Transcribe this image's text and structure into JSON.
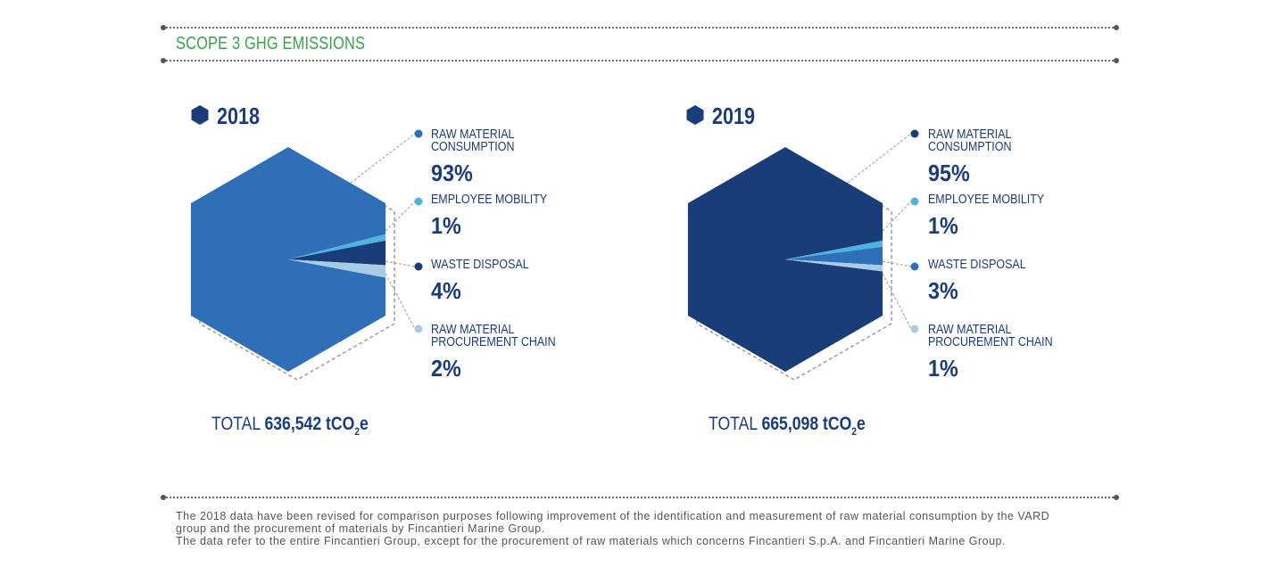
{
  "header": {
    "title": "SCOPE 3 GHG EMISSIONS"
  },
  "chart_data": [
    {
      "type": "pie",
      "title": "2018",
      "total_prefix": "TOTAL",
      "total_value": "636,542",
      "total_unit_main": "tCO",
      "total_unit_sub": "2",
      "total_unit_end": "e",
      "slices": [
        {
          "label": "RAW MATERIAL CONSUMPTION",
          "label_lines": [
            "RAW MATERIAL",
            "CONSUMPTION"
          ],
          "value": 93,
          "display": "93%",
          "color": "#2f6fb7"
        },
        {
          "label": "EMPLOYEE MOBILITY",
          "label_lines": [
            "EMPLOYEE MOBILITY"
          ],
          "value": 1,
          "display": "1%",
          "color": "#4fb3e0"
        },
        {
          "label": "WASTE DISPOSAL",
          "label_lines": [
            "WASTE DISPOSAL"
          ],
          "value": 4,
          "display": "4%",
          "color": "#183d78"
        },
        {
          "label": "RAW MATERIAL PROCUREMENT CHAIN",
          "label_lines": [
            "RAW MATERIAL",
            "PROCUREMENT CHAIN"
          ],
          "value": 2,
          "display": "2%",
          "color": "#a9cce6"
        }
      ]
    },
    {
      "type": "pie",
      "title": "2019",
      "total_prefix": "TOTAL",
      "total_value": "665,098",
      "total_unit_main": "tCO",
      "total_unit_sub": "2",
      "total_unit_end": "e",
      "slices": [
        {
          "label": "RAW MATERIAL CONSUMPTION",
          "label_lines": [
            "RAW MATERIAL",
            "CONSUMPTION"
          ],
          "value": 95,
          "display": "95%",
          "color": "#183d78"
        },
        {
          "label": "EMPLOYEE MOBILITY",
          "label_lines": [
            "EMPLOYEE MOBILITY"
          ],
          "value": 1,
          "display": "1%",
          "color": "#4fb3e0"
        },
        {
          "label": "WASTE DISPOSAL",
          "label_lines": [
            "WASTE DISPOSAL"
          ],
          "value": 3,
          "display": "3%",
          "color": "#2f6fb7"
        },
        {
          "label": "RAW MATERIAL PROCUREMENT CHAIN",
          "label_lines": [
            "RAW MATERIAL",
            "PROCUREMENT CHAIN"
          ],
          "value": 1,
          "display": "1%",
          "color": "#a9cce6"
        }
      ]
    }
  ],
  "notes": [
    "The 2018 data have been revised for comparison purposes following improvement of the identification and measurement of raw material consumption by the VARD",
    "group and the procurement of materials by Fincantieri Marine Group.",
    "The data refer to the entire Fincantieri Group, except for the procurement of raw materials which concerns Fincantieri S.p.A. and Fincantieri Marine Group."
  ]
}
